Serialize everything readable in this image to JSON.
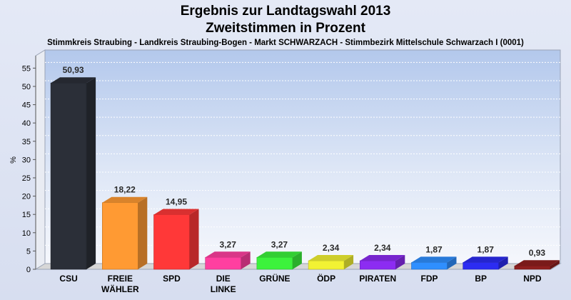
{
  "chart_data": {
    "type": "bar",
    "title": "Ergebnis zur Landtagswahl 2013",
    "subtitle": "Zweitstimmen in Prozent",
    "caption": "Stimmkreis Straubing - Landkreis Straubing-Bogen - Markt SCHWARZACH - Stimmbezirk Mittelschule Schwarzach I (0001)",
    "ylabel": "%",
    "ylim": [
      0,
      58
    ],
    "yticks": [
      "0",
      "5",
      "10",
      "15",
      "20",
      "25",
      "30",
      "35",
      "40",
      "45",
      "50",
      "55"
    ],
    "grid": true,
    "categories": [
      [
        "CSU"
      ],
      [
        "FREIE",
        "WÄHLER"
      ],
      [
        "SPD"
      ],
      [
        "DIE",
        "LINKE"
      ],
      [
        "GRÜNE"
      ],
      [
        "ÖDP"
      ],
      [
        "PIRATEN"
      ],
      [
        "FDP"
      ],
      [
        "BP"
      ],
      [
        "NPD"
      ]
    ],
    "values": [
      50.93,
      18.22,
      14.95,
      3.27,
      3.27,
      2.34,
      2.34,
      1.87,
      1.87,
      0.93
    ],
    "value_labels": [
      "50,93",
      "18,22",
      "14,95",
      "3,27",
      "3,27",
      "2,34",
      "2,34",
      "1,87",
      "1,87",
      "0,93"
    ],
    "colors": [
      "#2b2f38",
      "#ff9a33",
      "#ff3838",
      "#ff3fa0",
      "#3cf23c",
      "#f2f233",
      "#8c2cf2",
      "#2f8fff",
      "#2c2cf2",
      "#8f1f1f"
    ]
  }
}
